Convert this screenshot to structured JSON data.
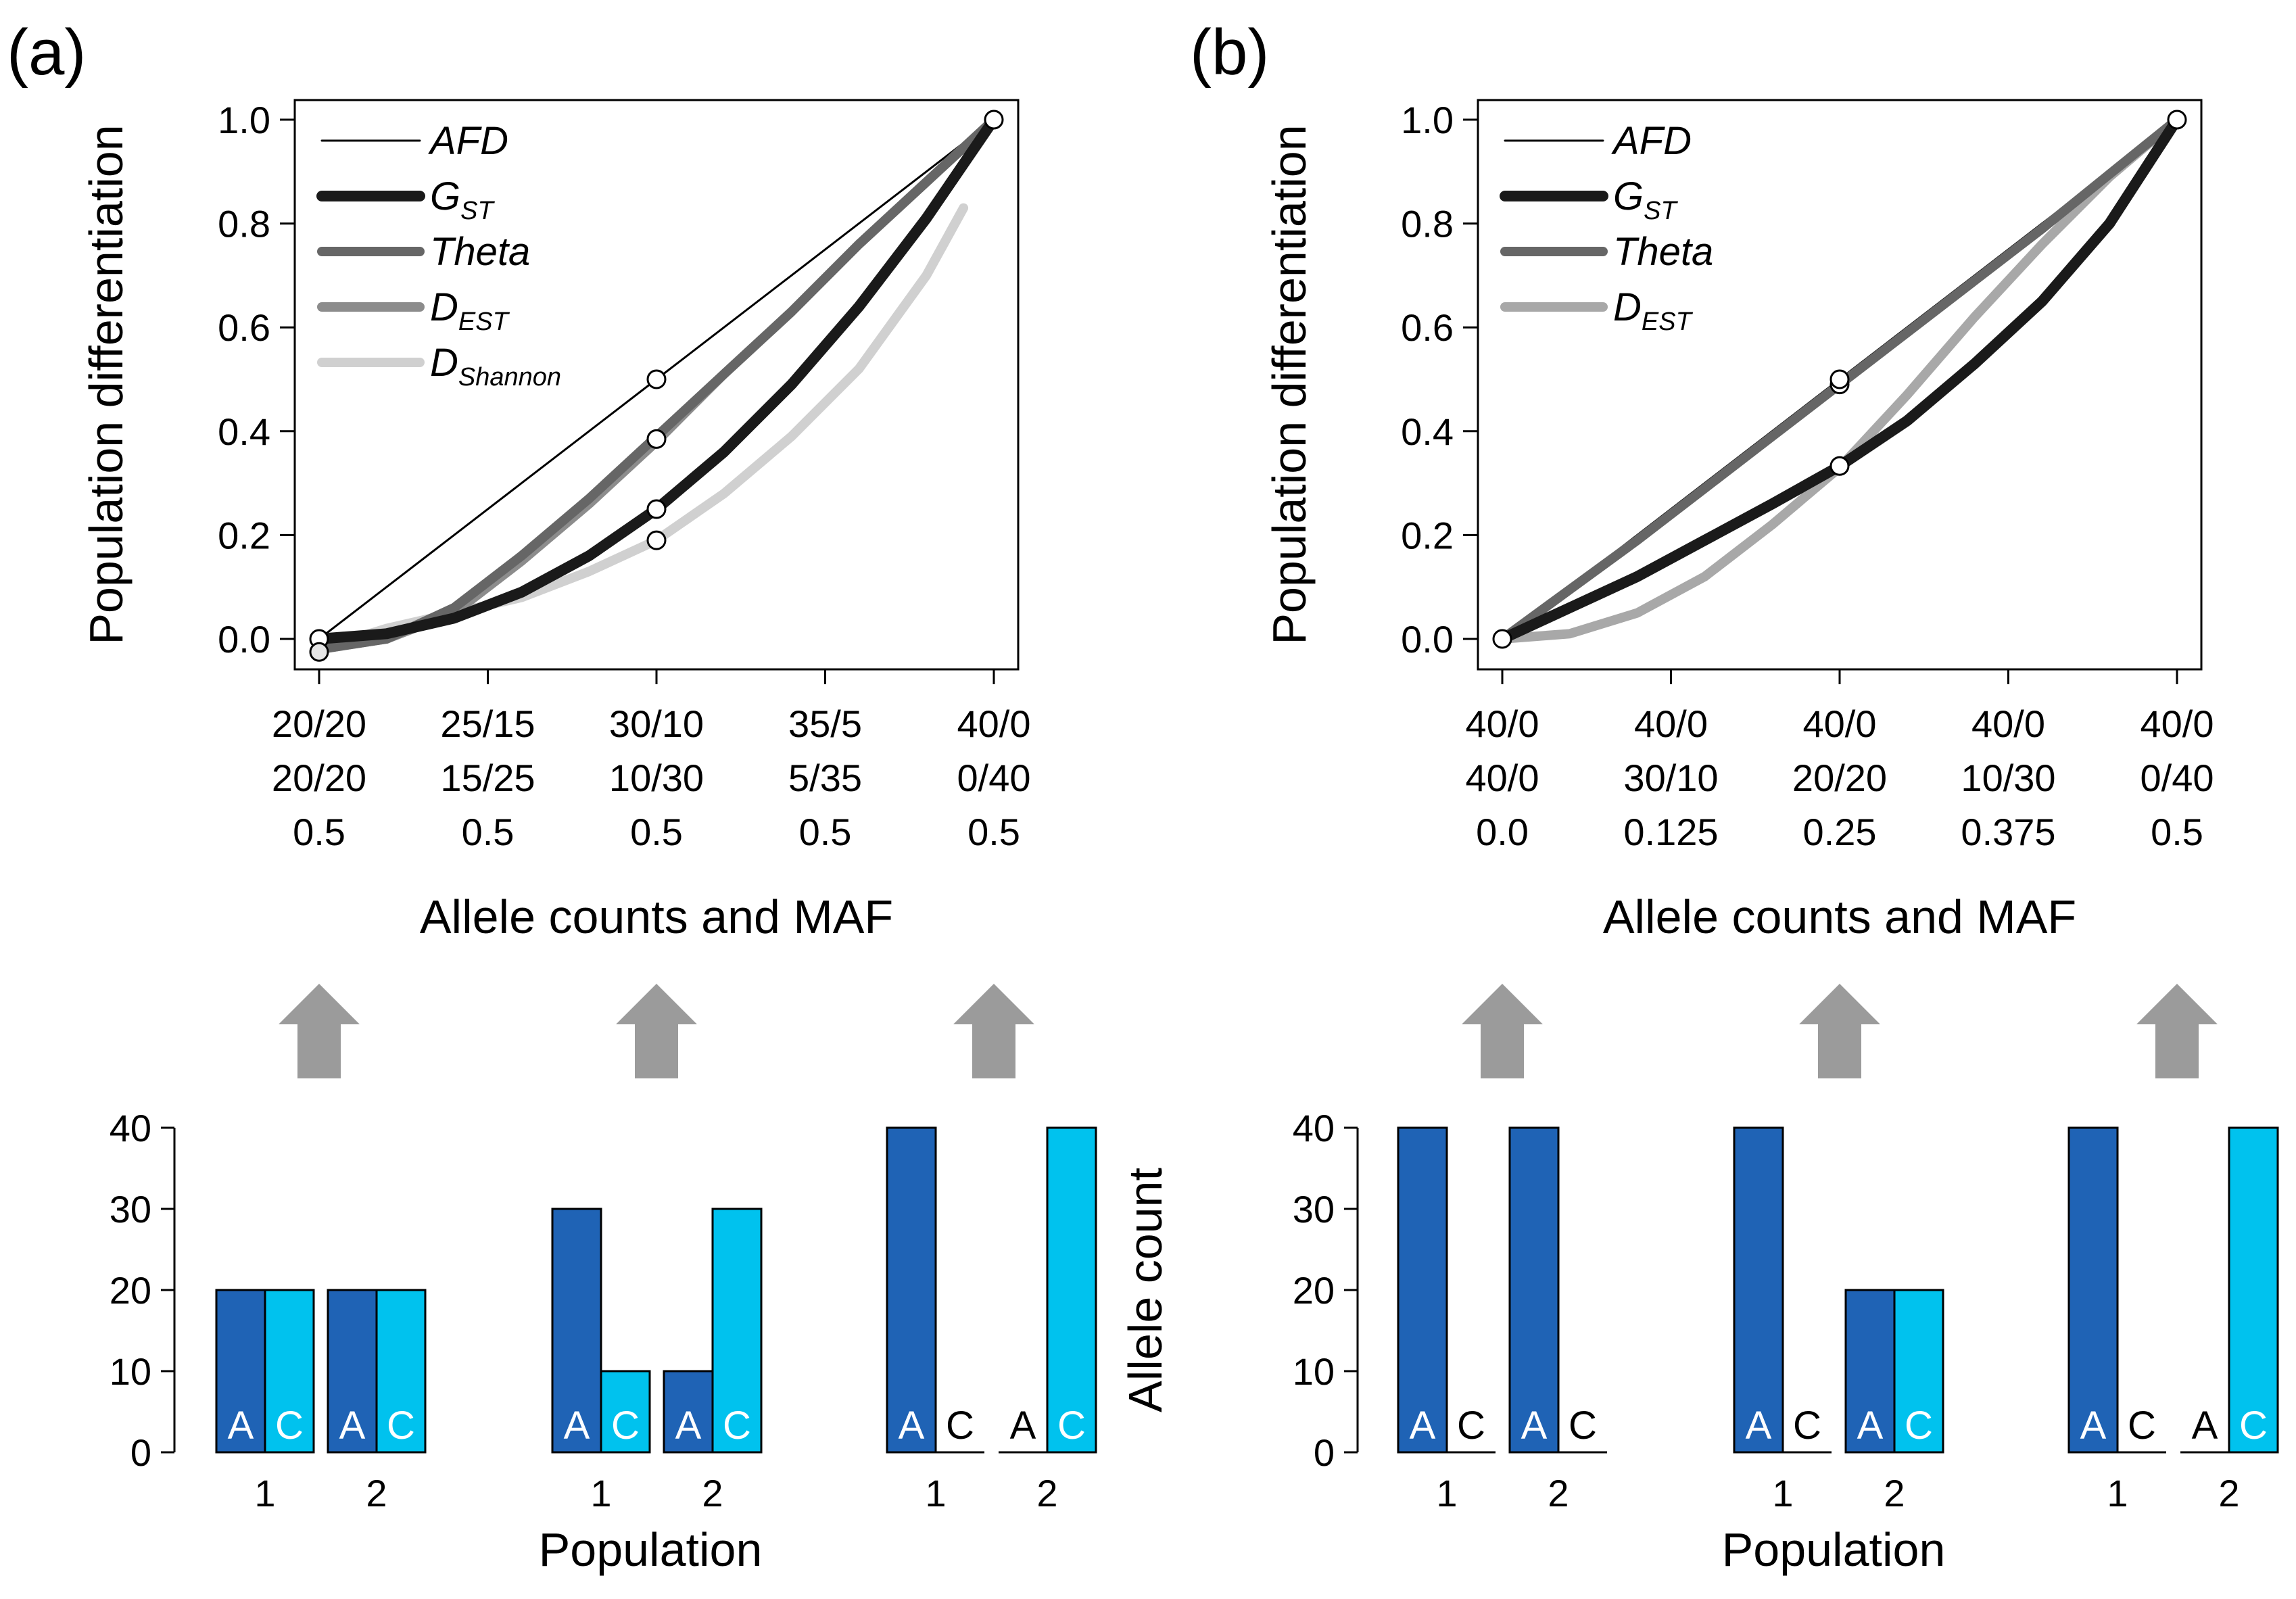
{
  "chart_data": [
    {
      "panel": "(a)",
      "type": "line",
      "ylabel": "Population differentiation",
      "xlabel": "Allele counts and MAF",
      "ylim": [
        0,
        1
      ],
      "yticks": [
        "0.0",
        "0.2",
        "0.4",
        "0.6",
        "0.8",
        "1.0"
      ],
      "xticks": [
        [
          "20/20",
          "20/20",
          "0.5"
        ],
        [
          "25/15",
          "15/25",
          "0.5"
        ],
        [
          "30/10",
          "10/30",
          "0.5"
        ],
        [
          "35/5",
          "5/35",
          "0.5"
        ],
        [
          "40/0",
          "0/40",
          "0.5"
        ]
      ],
      "x": [
        0,
        0.25,
        0.5,
        0.75,
        1.0
      ],
      "legend": [
        {
          "name": "AFD",
          "sub": "",
          "color": "#000000",
          "width": 3
        },
        {
          "name": "G",
          "sub": "ST",
          "color": "#1a1a1a",
          "width": 16
        },
        {
          "name": "Theta",
          "sub": "",
          "color": "#666666",
          "width": 14
        },
        {
          "name": "D",
          "sub": "EST",
          "color": "#8c8c8c",
          "width": 14
        },
        {
          "name": "D",
          "sub": "Shannon",
          "color": "#d0d0d0",
          "width": 14
        }
      ],
      "series": [
        {
          "name": "AFD",
          "color": "#000000",
          "width": 3,
          "x": [
            0,
            0.1,
            0.2,
            0.3,
            0.4,
            0.5,
            0.6,
            0.7,
            0.8,
            0.9,
            1.0
          ],
          "y": [
            0,
            0.1,
            0.2,
            0.3,
            0.4,
            0.5,
            0.6,
            0.7,
            0.8,
            0.9,
            1.0
          ]
        },
        {
          "name": "DShannon",
          "color": "#d0d0d0",
          "width": 14,
          "x": [
            0,
            0.1,
            0.2,
            0.3,
            0.4,
            0.5,
            0.6,
            0.7,
            0.8,
            0.9,
            0.955
          ],
          "y": [
            -0.02,
            0.02,
            0.05,
            0.08,
            0.13,
            0.19,
            0.28,
            0.39,
            0.52,
            0.7,
            0.83
          ]
        },
        {
          "name": "DEST",
          "color": "#8c8c8c",
          "width": 14,
          "x": [
            0,
            0.1,
            0.2,
            0.3,
            0.4,
            0.5,
            0.6,
            0.7,
            0.8,
            0.9,
            1.0
          ],
          "y": [
            -0.02,
            0.0,
            0.05,
            0.15,
            0.26,
            0.38,
            0.51,
            0.63,
            0.76,
            0.88,
            1.0
          ]
        },
        {
          "name": "Theta",
          "color": "#666666",
          "width": 14,
          "x": [
            0,
            0.1,
            0.2,
            0.3,
            0.4,
            0.5,
            0.6,
            0.7,
            0.8,
            0.9,
            1.0
          ],
          "y": [
            -0.02,
            0.0,
            0.06,
            0.16,
            0.27,
            0.39,
            0.51,
            0.63,
            0.76,
            0.88,
            1.0
          ]
        },
        {
          "name": "GST",
          "color": "#1a1a1a",
          "width": 16,
          "x": [
            0,
            0.1,
            0.2,
            0.3,
            0.4,
            0.5,
            0.6,
            0.7,
            0.8,
            0.9,
            1.0
          ],
          "y": [
            0,
            0.01,
            0.04,
            0.09,
            0.16,
            0.25,
            0.36,
            0.49,
            0.64,
            0.81,
            1.0
          ]
        }
      ],
      "points": [
        {
          "x": 0,
          "y": 0,
          "color": "#ffffff"
        },
        {
          "x": 0,
          "y": -0.025,
          "color": "#e6e6e6"
        },
        {
          "x": 0.5,
          "y": 0.5,
          "color": "#ffffff"
        },
        {
          "x": 0.5,
          "y": 0.385,
          "color": "#ffffff"
        },
        {
          "x": 0.5,
          "y": 0.25,
          "color": "#ffffff"
        },
        {
          "x": 0.5,
          "y": 0.19,
          "color": "#ffffff"
        },
        {
          "x": 1.0,
          "y": 1.0,
          "color": "#ffffff"
        }
      ]
    },
    {
      "panel": "(b)",
      "type": "line",
      "ylabel": "Population differentiation",
      "xlabel": "Allele counts and MAF",
      "ylim": [
        0,
        1
      ],
      "yticks": [
        "0.0",
        "0.2",
        "0.4",
        "0.6",
        "0.8",
        "1.0"
      ],
      "xticks": [
        [
          "40/0",
          "40/0",
          "0.0"
        ],
        [
          "40/0",
          "30/10",
          "0.125"
        ],
        [
          "40/0",
          "20/20",
          "0.25"
        ],
        [
          "40/0",
          "10/30",
          "0.375"
        ],
        [
          "40/0",
          "0/40",
          "0.5"
        ]
      ],
      "x": [
        0,
        0.25,
        0.5,
        0.75,
        1.0
      ],
      "legend": [
        {
          "name": "AFD",
          "sub": "",
          "color": "#000000",
          "width": 3
        },
        {
          "name": "G",
          "sub": "ST",
          "color": "#1a1a1a",
          "width": 16
        },
        {
          "name": "Theta",
          "sub": "",
          "color": "#666666",
          "width": 14
        },
        {
          "name": "D",
          "sub": "EST",
          "color": "#a8a8a8",
          "width": 14
        }
      ],
      "series": [
        {
          "name": "DEST",
          "color": "#a8a8a8",
          "width": 14,
          "x": [
            0,
            0.1,
            0.2,
            0.3,
            0.4,
            0.5,
            0.6,
            0.7,
            0.8,
            0.9,
            1.0
          ],
          "y": [
            0,
            0.01,
            0.05,
            0.12,
            0.22,
            0.33,
            0.47,
            0.62,
            0.76,
            0.89,
            1.0
          ]
        },
        {
          "name": "AFD",
          "color": "#000000",
          "width": 3,
          "x": [
            0,
            0.1,
            0.2,
            0.3,
            0.4,
            0.5,
            0.6,
            0.7,
            0.8,
            0.9,
            1.0
          ],
          "y": [
            0,
            0.1,
            0.2,
            0.3,
            0.4,
            0.5,
            0.6,
            0.7,
            0.8,
            0.9,
            1.0
          ]
        },
        {
          "name": "Theta",
          "color": "#666666",
          "width": 14,
          "x": [
            0,
            0.1,
            0.2,
            0.3,
            0.4,
            0.5,
            0.6,
            0.7,
            0.8,
            0.9,
            1.0
          ],
          "y": [
            0,
            0.095,
            0.19,
            0.29,
            0.39,
            0.49,
            0.59,
            0.69,
            0.79,
            0.895,
            1.0
          ]
        },
        {
          "name": "GST",
          "color": "#1a1a1a",
          "width": 16,
          "x": [
            0,
            0.1,
            0.2,
            0.3,
            0.4,
            0.5,
            0.6,
            0.7,
            0.8,
            0.9,
            1.0
          ],
          "y": [
            0,
            0.06,
            0.12,
            0.19,
            0.26,
            0.333,
            0.42,
            0.53,
            0.65,
            0.8,
            1.0
          ]
        }
      ],
      "points": [
        {
          "x": 0,
          "y": 0,
          "color": "#ffffff"
        },
        {
          "x": 0.5,
          "y": 0.49,
          "color": "#ffffff"
        },
        {
          "x": 0.5,
          "y": 0.5,
          "color": "#ffffff"
        },
        {
          "x": 0.5,
          "y": 0.333,
          "color": "#ffffff"
        },
        {
          "x": 1.0,
          "y": 1.0,
          "color": "#ffffff"
        }
      ]
    },
    {
      "panel": "(a)",
      "type": "bar",
      "ylabel": "Allele count",
      "xlabel": "Population",
      "ylim": [
        0,
        40
      ],
      "yticks": [
        "0",
        "10",
        "20",
        "30",
        "40"
      ],
      "population_labels": [
        "1",
        "2"
      ],
      "allele_labels": [
        "A",
        "C"
      ],
      "colors": {
        "A": "#1f63b5",
        "C": "#00c2ee"
      },
      "groups": [
        {
          "pops": [
            {
              "A": 20,
              "C": 20
            },
            {
              "A": 20,
              "C": 20
            }
          ]
        },
        {
          "pops": [
            {
              "A": 30,
              "C": 10
            },
            {
              "A": 10,
              "C": 30
            }
          ]
        },
        {
          "pops": [
            {
              "A": 40,
              "C": 0
            },
            {
              "A": 0,
              "C": 40
            }
          ]
        }
      ]
    },
    {
      "panel": "(b)",
      "type": "bar",
      "ylabel": "Allele count",
      "xlabel": "Population",
      "ylim": [
        0,
        40
      ],
      "yticks": [
        "0",
        "10",
        "20",
        "30",
        "40"
      ],
      "population_labels": [
        "1",
        "2"
      ],
      "allele_labels": [
        "A",
        "C"
      ],
      "colors": {
        "A": "#1f63b5",
        "C": "#00c2ee"
      },
      "groups": [
        {
          "pops": [
            {
              "A": 40,
              "C": 0
            },
            {
              "A": 40,
              "C": 0
            }
          ]
        },
        {
          "pops": [
            {
              "A": 40,
              "C": 0
            },
            {
              "A": 20,
              "C": 20
            }
          ]
        },
        {
          "pops": [
            {
              "A": 40,
              "C": 0
            },
            {
              "A": 0,
              "C": 40
            }
          ]
        }
      ]
    }
  ],
  "arrow_color": "#9b9b9b"
}
